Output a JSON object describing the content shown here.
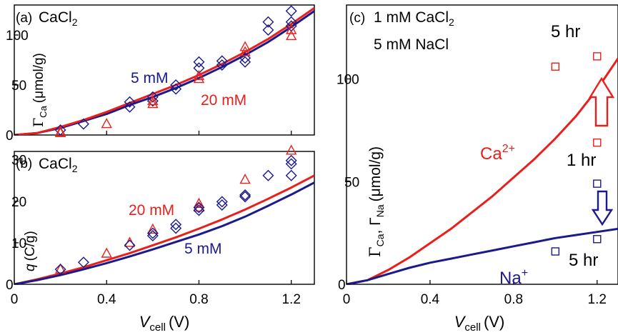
{
  "colors": {
    "blue": "#1a1a8c",
    "red": "#e8201c",
    "axis": "#000000"
  },
  "chart_data": [
    {
      "id": "a",
      "type": "line+scatter",
      "panel_label": "(a)",
      "salt_main": "CaCl",
      "salt_sub": "2",
      "xlim": [
        0,
        1.3
      ],
      "ylim": [
        0,
        130
      ],
      "xticks": [
        "0",
        "0.4",
        "0.8",
        "1.2"
      ],
      "xtick_values": [
        0,
        0.4,
        0.8,
        1.2
      ],
      "yticks": [
        "0",
        "50",
        "100"
      ],
      "ytick_values": [
        0,
        50,
        100
      ],
      "ylabel_gamma": "Γ",
      "ylabel_sub": "Ca",
      "ylabel_unit": "(μmol/g)",
      "labels": [
        {
          "text": "5 mM",
          "color": "blue"
        },
        {
          "text": "20 mM",
          "color": "red"
        }
      ],
      "series": [
        {
          "name": "5 mM",
          "color": "blue",
          "curve": {
            "x": [
              0,
              0.1,
              0.2,
              0.3,
              0.4,
              0.5,
              0.6,
              0.7,
              0.8,
              0.9,
              1.0,
              1.1,
              1.2,
              1.3
            ],
            "y": [
              0,
              2,
              7,
              14,
              21,
              30,
              38,
              47,
              57,
              68,
              80,
              93,
              108,
              124
            ]
          },
          "markers": "diamond",
          "points": {
            "x": [
              0.2,
              0.3,
              0.5,
              0.5,
              0.6,
              0.6,
              0.7,
              0.7,
              0.8,
              0.8,
              0.9,
              0.9,
              1.0,
              1.0,
              1.1,
              1.1,
              1.2,
              1.2,
              1.2
            ],
            "y": [
              5,
              11,
              28,
              33,
              34,
              38,
              46,
              50,
              67,
              73,
              70,
              74,
              73,
              77,
              105,
              113,
              109,
              113,
              124
            ]
          }
        },
        {
          "name": "20 mM",
          "color": "red",
          "curve": {
            "x": [
              0,
              0.1,
              0.2,
              0.3,
              0.4,
              0.5,
              0.6,
              0.7,
              0.8,
              0.9,
              1.0,
              1.1,
              1.2,
              1.3
            ],
            "y": [
              0,
              2,
              8,
              15,
              23,
              32,
              41,
              50,
              60,
              71,
              83,
              96,
              111,
              127
            ]
          },
          "markers": "triangle",
          "points": {
            "x": [
              0.2,
              0.2,
              0.4,
              0.6,
              0.6,
              0.8,
              0.8,
              1.0,
              1.0,
              1.2,
              1.2
            ],
            "y": [
              2,
              3,
              11,
              31,
              34,
              56,
              59,
              83,
              88,
              99,
              105
            ]
          }
        }
      ]
    },
    {
      "id": "b",
      "type": "line+scatter",
      "panel_label": "(b)",
      "salt_main": "CaCl",
      "salt_sub": "2",
      "xlim": [
        0,
        1.3
      ],
      "ylim": [
        0,
        32
      ],
      "xticks": [
        "0",
        "0.4",
        "0.8",
        "1.2"
      ],
      "xtick_values": [
        0,
        0.4,
        0.8,
        1.2
      ],
      "yticks": [
        "0",
        "10",
        "20",
        "30"
      ],
      "ytick_values": [
        0,
        10,
        20,
        30
      ],
      "ylabel_q": "q",
      "ylabel_unit": "(C/g)",
      "labels": [
        {
          "text": "20 mM",
          "color": "red"
        },
        {
          "text": "5 mM",
          "color": "blue"
        }
      ],
      "series": [
        {
          "name": "20 mM",
          "color": "red",
          "curve": {
            "x": [
              0,
              0.1,
              0.2,
              0.3,
              0.4,
              0.5,
              0.6,
              0.7,
              0.8,
              0.9,
              1.0,
              1.1,
              1.2,
              1.3
            ],
            "y": [
              0,
              1.2,
              2.6,
              4.1,
              5.8,
              7.5,
              9.4,
              11.3,
              13.4,
              15.6,
              18.0,
              20.6,
              23.3,
              26.2
            ]
          },
          "markers": "triangle",
          "points": {
            "x": [
              0.2,
              0.4,
              0.5,
              0.6,
              0.8,
              0.8,
              1.0,
              1.2
            ],
            "y": [
              3.6,
              7.4,
              10.0,
              13.2,
              18.5,
              19.4,
              25.2,
              32.2
            ]
          }
        },
        {
          "name": "5 mM",
          "color": "blue",
          "curve": {
            "x": [
              0,
              0.1,
              0.2,
              0.3,
              0.4,
              0.5,
              0.6,
              0.7,
              0.8,
              0.9,
              1.0,
              1.1,
              1.2,
              1.3
            ],
            "y": [
              0,
              1.0,
              2.2,
              3.6,
              5.1,
              6.7,
              8.4,
              10.2,
              12.0,
              14.0,
              16.3,
              18.9,
              21.6,
              24.5
            ]
          },
          "markers": "diamond",
          "points": {
            "x": [
              0.2,
              0.3,
              0.5,
              0.6,
              0.6,
              0.7,
              0.7,
              0.8,
              0.8,
              0.9,
              0.9,
              1.0,
              1.0,
              1.1,
              1.2,
              1.2,
              1.2
            ],
            "y": [
              3.6,
              5.3,
              9.4,
              11.7,
              12.3,
              13.5,
              14.4,
              17.8,
              18.5,
              19.1,
              19.9,
              21.1,
              21.5,
              26.2,
              26.2,
              29.0,
              29.8
            ]
          }
        }
      ]
    },
    {
      "id": "c",
      "type": "line+scatter",
      "panel_label": "(c)",
      "condition_line1_main": "1 mM CaCl",
      "condition_line1_sub": "2",
      "condition_line2": "5 mM NaCl",
      "xlim": [
        0,
        1.3
      ],
      "ylim": [
        0,
        136
      ],
      "xticks": [
        "0",
        "0.4",
        "0.8",
        "1.2"
      ],
      "xtick_values": [
        0,
        0.4,
        0.8,
        1.2
      ],
      "yticks": [
        "0",
        "50",
        "100"
      ],
      "ytick_values": [
        0,
        50,
        100
      ],
      "ylabel_gamma": "Γ",
      "ylabel_sub_ca": "Ca",
      "ylabel_sep": ", Γ",
      "ylabel_sub_na": "Na",
      "ylabel_unit": "(μmol/g)",
      "series": [
        {
          "name": "Ca",
          "color": "red",
          "label_main": "Ca",
          "label_sup": "2+",
          "curve": {
            "x": [
              0,
              0.1,
              0.2,
              0.3,
              0.4,
              0.5,
              0.6,
              0.7,
              0.8,
              0.9,
              1.0,
              1.1,
              1.2,
              1.3
            ],
            "y": [
              0,
              2,
              7,
              13,
              20,
              27,
              35,
              43,
              52,
              61,
              71,
              82,
              95,
              110
            ]
          },
          "markers": "square",
          "points": {
            "x": [
              1.0,
              1.2,
              1.2
            ],
            "y": [
              106,
              111,
              69
            ]
          }
        },
        {
          "name": "Na",
          "color": "blue",
          "label_main": "Na",
          "label_sup": "+",
          "curve": {
            "x": [
              0,
              0.1,
              0.2,
              0.3,
              0.4,
              0.5,
              0.6,
              0.7,
              0.8,
              0.9,
              1.0,
              1.1,
              1.2,
              1.3
            ],
            "y": [
              0,
              2,
              5,
              8,
              10.5,
              12.5,
              14.5,
              16.5,
              18.5,
              20.5,
              22.5,
              24,
              25.5,
              27
            ]
          },
          "markers": "square",
          "points": {
            "x": [
              1.0,
              1.2,
              1.2
            ],
            "y": [
              16,
              22,
              49
            ]
          }
        }
      ],
      "annotations": [
        {
          "text": "5 hr",
          "color": "black"
        },
        {
          "text": "1 hr",
          "color": "black"
        },
        {
          "text": "5 hr",
          "color": "black"
        }
      ]
    }
  ],
  "xlabel": {
    "v": "V",
    "sub": "cell",
    "unit": "(V)"
  }
}
